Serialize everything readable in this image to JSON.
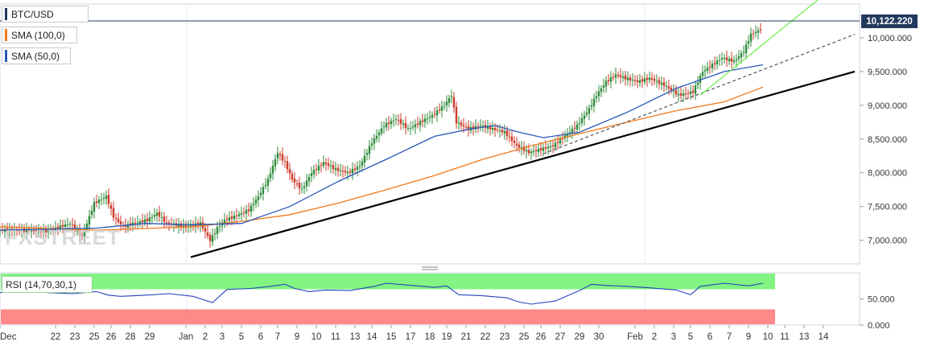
{
  "chart_data": {
    "type": "candlestick",
    "symbol": "BTC/USD",
    "last_price": "10,122.220",
    "indicators": {
      "sma100_label": "SMA (100,0)",
      "sma50_label": "SMA (50,0)",
      "rsi_label": "RSI (14,70,30,1)"
    },
    "colors": {
      "up": "#2e8b3a",
      "down": "#cd3a2a",
      "sma100": "#f07a1e",
      "sma50": "#2a57b8",
      "rsi_line": "#2244bb",
      "overbought": "#6bf26b",
      "oversold": "#ff7b7b",
      "badge": "#23395d"
    },
    "y_axis": {
      "ticks": [
        "10,000.000",
        "9,500.000",
        "9,000.000",
        "8,500.000",
        "8,000.000",
        "7,500.000",
        "7,000.000"
      ],
      "values": [
        10000,
        9500,
        9000,
        8500,
        8000,
        7500,
        7000
      ],
      "ylim": [
        6650,
        10500
      ]
    },
    "rsi_axis": {
      "ticks": [
        "50.000",
        "0.000"
      ],
      "values": [
        50,
        0
      ],
      "ylim": [
        0,
        100
      ],
      "overbought": 70,
      "oversold": 30
    },
    "x_axis": {
      "labels": [
        "Dec",
        "22",
        "23",
        "25",
        "26",
        "28",
        "29",
        "Jan",
        "2",
        "3",
        "5",
        "6",
        "7",
        "9",
        "10",
        "11",
        "13",
        "14",
        "15",
        "17",
        "18",
        "19",
        "21",
        "22",
        "23",
        "25",
        "26",
        "27",
        "29",
        "30",
        "Feb",
        "2",
        "3",
        "5",
        "6",
        "7",
        "9",
        "10",
        "11",
        "13",
        "14"
      ],
      "positions": [
        0,
        23,
        31,
        39,
        46,
        54,
        62,
        77,
        85,
        92,
        100,
        108,
        115,
        123,
        131,
        139,
        147,
        154,
        162,
        170,
        178,
        185,
        193,
        201,
        209,
        217,
        224,
        232,
        240,
        248,
        263,
        271,
        279,
        286,
        294,
        302,
        310,
        318,
        325,
        333,
        341
      ]
    },
    "series": [
      {
        "name": "BTC/USD",
        "points": [
          [
            0,
            7150
          ],
          [
            10,
            7150
          ],
          [
            20,
            7130
          ],
          [
            30,
            7250
          ],
          [
            35,
            7050
          ],
          [
            40,
            7550
          ],
          [
            45,
            7650
          ],
          [
            48,
            7350
          ],
          [
            52,
            7200
          ],
          [
            56,
            7250
          ],
          [
            62,
            7300
          ],
          [
            66,
            7400
          ],
          [
            70,
            7250
          ],
          [
            78,
            7200
          ],
          [
            84,
            7250
          ],
          [
            88,
            7000
          ],
          [
            91,
            7180
          ],
          [
            94,
            7300
          ],
          [
            98,
            7350
          ],
          [
            104,
            7450
          ],
          [
            108,
            7650
          ],
          [
            112,
            7900
          ],
          [
            116,
            8300
          ],
          [
            119,
            8150
          ],
          [
            122,
            7900
          ],
          [
            126,
            7750
          ],
          [
            130,
            8000
          ],
          [
            135,
            8150
          ],
          [
            140,
            8050
          ],
          [
            145,
            8000
          ],
          [
            150,
            8100
          ],
          [
            155,
            8450
          ],
          [
            160,
            8700
          ],
          [
            165,
            8800
          ],
          [
            170,
            8650
          ],
          [
            175,
            8750
          ],
          [
            180,
            8850
          ],
          [
            185,
            9000
          ],
          [
            188,
            9150
          ],
          [
            190,
            8750
          ],
          [
            195,
            8650
          ],
          [
            200,
            8700
          ],
          [
            205,
            8650
          ],
          [
            210,
            8600
          ],
          [
            215,
            8400
          ],
          [
            220,
            8300
          ],
          [
            225,
            8350
          ],
          [
            230,
            8400
          ],
          [
            235,
            8550
          ],
          [
            240,
            8700
          ],
          [
            245,
            8950
          ],
          [
            248,
            9150
          ],
          [
            252,
            9350
          ],
          [
            256,
            9450
          ],
          [
            260,
            9400
          ],
          [
            265,
            9350
          ],
          [
            270,
            9400
          ],
          [
            276,
            9300
          ],
          [
            282,
            9150
          ],
          [
            288,
            9200
          ],
          [
            292,
            9500
          ],
          [
            296,
            9600
          ],
          [
            300,
            9700
          ],
          [
            305,
            9650
          ],
          [
            309,
            9800
          ],
          [
            312,
            10050
          ],
          [
            316,
            10122
          ]
        ]
      },
      {
        "name": "SMA (100,0)",
        "points": [
          [
            0,
            7200
          ],
          [
            40,
            7150
          ],
          [
            80,
            7200
          ],
          [
            100,
            7280
          ],
          [
            120,
            7380
          ],
          [
            140,
            7550
          ],
          [
            160,
            7750
          ],
          [
            180,
            7960
          ],
          [
            200,
            8200
          ],
          [
            220,
            8400
          ],
          [
            240,
            8580
          ],
          [
            260,
            8750
          ],
          [
            280,
            8920
          ],
          [
            300,
            9050
          ],
          [
            316,
            9270
          ]
        ]
      },
      {
        "name": "SMA (50,0)",
        "points": [
          [
            0,
            7150
          ],
          [
            40,
            7180
          ],
          [
            60,
            7250
          ],
          [
            80,
            7230
          ],
          [
            100,
            7250
          ],
          [
            120,
            7500
          ],
          [
            140,
            7870
          ],
          [
            160,
            8200
          ],
          [
            180,
            8540
          ],
          [
            195,
            8650
          ],
          [
            205,
            8700
          ],
          [
            215,
            8600
          ],
          [
            225,
            8520
          ],
          [
            240,
            8600
          ],
          [
            260,
            8900
          ],
          [
            280,
            9250
          ],
          [
            300,
            9500
          ],
          [
            316,
            9600
          ]
        ]
      },
      {
        "name": "RSI (14,70,30,1)",
        "points": [
          [
            0,
            62
          ],
          [
            10,
            65
          ],
          [
            20,
            62
          ],
          [
            30,
            60
          ],
          [
            40,
            64
          ],
          [
            45,
            57
          ],
          [
            50,
            55
          ],
          [
            60,
            57
          ],
          [
            70,
            60
          ],
          [
            80,
            55
          ],
          [
            88,
            43
          ],
          [
            94,
            68
          ],
          [
            104,
            70
          ],
          [
            112,
            74
          ],
          [
            118,
            78
          ],
          [
            122,
            70
          ],
          [
            128,
            64
          ],
          [
            135,
            67
          ],
          [
            145,
            66
          ],
          [
            155,
            74
          ],
          [
            160,
            80
          ],
          [
            170,
            76
          ],
          [
            180,
            72
          ],
          [
            185,
            75
          ],
          [
            190,
            58
          ],
          [
            200,
            56
          ],
          [
            210,
            52
          ],
          [
            215,
            44
          ],
          [
            220,
            40
          ],
          [
            230,
            46
          ],
          [
            240,
            66
          ],
          [
            245,
            78
          ],
          [
            250,
            76
          ],
          [
            260,
            74
          ],
          [
            270,
            71
          ],
          [
            280,
            67
          ],
          [
            286,
            58
          ],
          [
            290,
            74
          ],
          [
            300,
            80
          ],
          [
            310,
            75
          ],
          [
            316,
            80
          ]
        ]
      }
    ],
    "trendlines": [
      {
        "style": "solid",
        "color": "#000000",
        "from": [
          79,
          6750
        ],
        "to": [
          354,
          9500
        ]
      },
      {
        "style": "dashed",
        "color": "#555555",
        "from": [
          225,
          8280
        ],
        "to": [
          354,
          10050
        ]
      },
      {
        "style": "solid",
        "color": "#66ee44",
        "from": [
          290,
          9150
        ],
        "to": [
          340,
          10600
        ]
      }
    ]
  }
}
